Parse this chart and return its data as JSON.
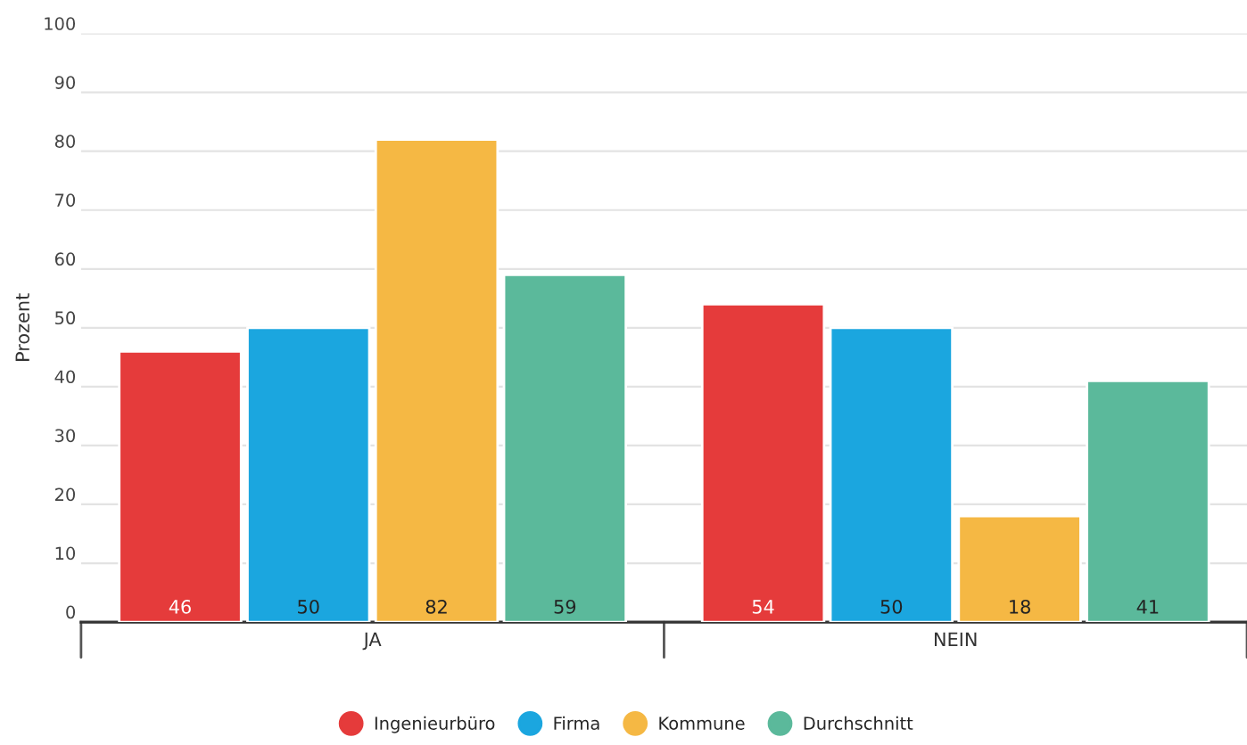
{
  "chart_data": {
    "type": "bar",
    "ylabel": "Prozent",
    "categories": [
      "JA",
      "NEIN"
    ],
    "series": [
      {
        "name": "Ingenieurbüro",
        "color": "#e53b3b",
        "values": [
          46,
          54
        ]
      },
      {
        "name": "Firma",
        "color": "#1ba6df",
        "values": [
          50,
          50
        ]
      },
      {
        "name": "Kommune",
        "color": "#f5b844",
        "values": [
          82,
          18
        ]
      },
      {
        "name": "Durchschnitt",
        "color": "#5bb99b",
        "values": [
          59,
          41
        ]
      }
    ],
    "ylim": [
      0,
      100
    ],
    "yticks": [
      0,
      10,
      20,
      30,
      40,
      50,
      60,
      70,
      80,
      90,
      100
    ],
    "grid": "y",
    "legend": "bottom",
    "data_labels": true
  }
}
